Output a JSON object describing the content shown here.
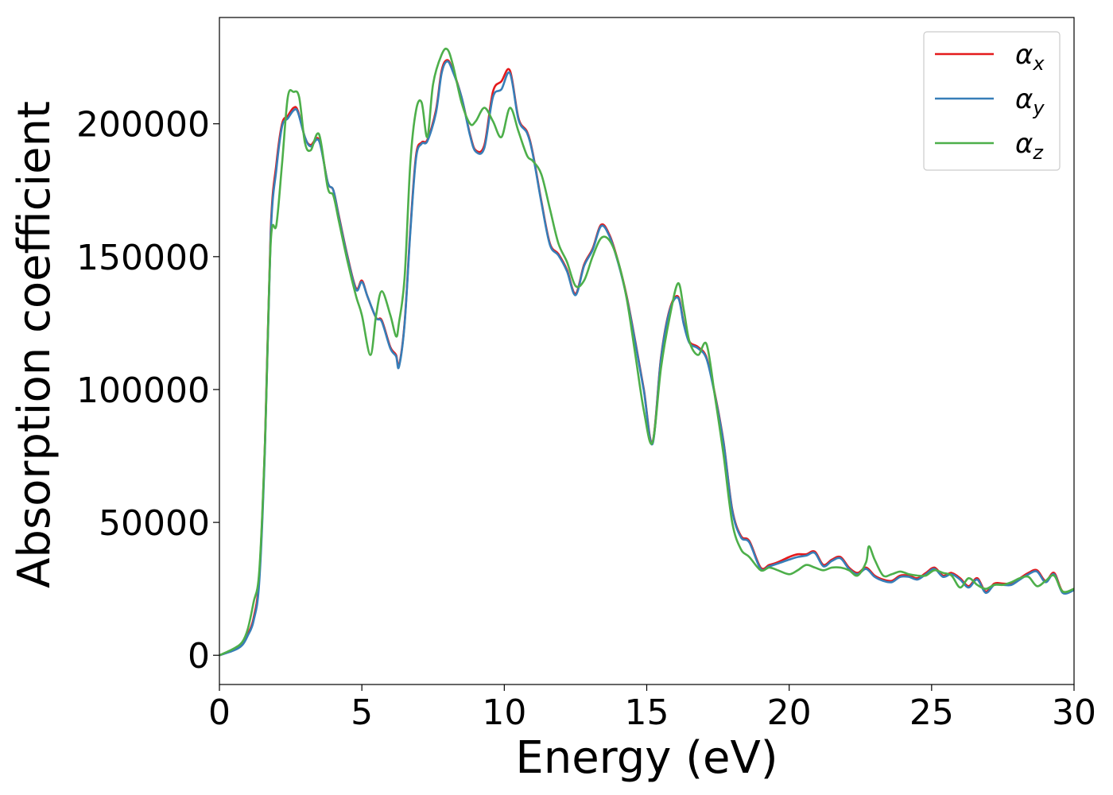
{
  "chart_data": {
    "type": "line",
    "xlabel": "Energy (eV)",
    "ylabel": "Absorption coefficient",
    "xlim": [
      0,
      30
    ],
    "ylim": [
      -11000,
      240000
    ],
    "xticks": [
      0,
      5,
      10,
      15,
      20,
      25,
      30
    ],
    "xtick_labels": [
      "0",
      "5",
      "10",
      "15",
      "20",
      "25",
      "30"
    ],
    "yticks": [
      0,
      50000,
      100000,
      150000,
      200000
    ],
    "ytick_labels": [
      "0",
      "50000",
      "100000",
      "150000",
      "200000"
    ],
    "grid": false,
    "legend_position": "top-right",
    "legend": [
      {
        "symbol": "α",
        "subscript": "x",
        "color": "#e41a1c"
      },
      {
        "symbol": "α",
        "subscript": "y",
        "color": "#377eb8"
      },
      {
        "symbol": "α",
        "subscript": "z",
        "color": "#4daf4a"
      }
    ],
    "series": [
      {
        "name": "αx",
        "color": "#e41a1c",
        "x": [
          0,
          0.5,
          0.8,
          1.0,
          1.2,
          1.4,
          1.6,
          1.8,
          2.0,
          2.2,
          2.4,
          2.6,
          2.75,
          3.0,
          3.2,
          3.5,
          3.8,
          4.0,
          4.2,
          4.5,
          4.8,
          5.0,
          5.2,
          5.5,
          5.7,
          6.0,
          6.2,
          6.3,
          6.5,
          6.7,
          6.9,
          7.1,
          7.3,
          7.6,
          7.8,
          8.0,
          8.2,
          8.5,
          8.8,
          9.0,
          9.3,
          9.6,
          9.9,
          10.2,
          10.5,
          10.8,
          11.0,
          11.3,
          11.6,
          11.9,
          12.2,
          12.5,
          12.8,
          13.1,
          13.4,
          13.7,
          14.0,
          14.3,
          14.6,
          14.9,
          15.2,
          15.5,
          15.8,
          16.1,
          16.3,
          16.5,
          16.8,
          17.1,
          17.4,
          17.7,
          18.0,
          18.3,
          18.6,
          19.0,
          19.3,
          19.6,
          20.0,
          20.3,
          20.6,
          20.9,
          21.2,
          21.5,
          21.8,
          22.1,
          22.4,
          22.7,
          23.0,
          23.3,
          23.6,
          23.9,
          24.2,
          24.5,
          24.8,
          25.1,
          25.4,
          25.7,
          26.0,
          26.3,
          26.6,
          26.9,
          27.2,
          27.5,
          27.8,
          28.1,
          28.4,
          28.7,
          29.0,
          29.3,
          29.6,
          30.0
        ],
        "y": [
          0,
          2000,
          4000,
          8000,
          14000,
          30000,
          80000,
          160000,
          185000,
          200000,
          203000,
          206000,
          205000,
          195000,
          192000,
          194000,
          178000,
          175000,
          165000,
          150000,
          138000,
          141000,
          135000,
          127000,
          126000,
          116000,
          113000,
          109000,
          125000,
          160000,
          188000,
          193000,
          194000,
          205000,
          220000,
          224000,
          220000,
          210000,
          196000,
          190000,
          192000,
          212000,
          216000,
          220000,
          202000,
          197000,
          189000,
          171000,
          155000,
          151000,
          145000,
          136000,
          147000,
          153000,
          162000,
          158000,
          148000,
          135000,
          118000,
          100000,
          80000,
          112000,
          130000,
          135000,
          125000,
          118000,
          116000,
          112000,
          98000,
          80000,
          55000,
          45000,
          43000,
          33000,
          34000,
          35000,
          37000,
          38000,
          38000,
          39000,
          34000,
          36000,
          37000,
          33000,
          31000,
          33000,
          30000,
          28500,
          28000,
          30000,
          30000,
          29000,
          31000,
          33000,
          30000,
          31000,
          29000,
          26000,
          29000,
          24000,
          27000,
          27000,
          27000,
          29000,
          31000,
          32000,
          28000,
          31000,
          24000,
          25000
        ]
      },
      {
        "name": "αy",
        "color": "#377eb8",
        "x": [
          0,
          0.5,
          0.8,
          1.0,
          1.2,
          1.4,
          1.6,
          1.8,
          2.0,
          2.2,
          2.4,
          2.6,
          2.75,
          3.0,
          3.2,
          3.5,
          3.8,
          4.0,
          4.2,
          4.5,
          4.8,
          5.0,
          5.2,
          5.5,
          5.7,
          6.0,
          6.2,
          6.3,
          6.5,
          6.7,
          6.9,
          7.1,
          7.3,
          7.6,
          7.8,
          8.0,
          8.2,
          8.5,
          8.8,
          9.0,
          9.3,
          9.6,
          9.9,
          10.2,
          10.5,
          10.8,
          11.0,
          11.3,
          11.6,
          11.9,
          12.2,
          12.5,
          12.8,
          13.1,
          13.4,
          13.7,
          14.0,
          14.3,
          14.6,
          14.9,
          15.2,
          15.5,
          15.8,
          16.1,
          16.3,
          16.5,
          16.8,
          17.1,
          17.4,
          17.7,
          18.0,
          18.3,
          18.6,
          19.0,
          19.3,
          19.6,
          20.0,
          20.3,
          20.6,
          20.9,
          21.2,
          21.5,
          21.8,
          22.1,
          22.4,
          22.7,
          23.0,
          23.3,
          23.6,
          23.9,
          24.2,
          24.5,
          24.8,
          25.1,
          25.4,
          25.7,
          26.0,
          26.3,
          26.6,
          26.9,
          27.2,
          27.5,
          27.8,
          28.1,
          28.4,
          28.7,
          29.0,
          29.3,
          29.6,
          30.0
        ],
        "y": [
          0,
          1800,
          3800,
          7500,
          13000,
          28000,
          78000,
          158000,
          183000,
          199000,
          202000,
          205000,
          204500,
          195000,
          191500,
          193500,
          178000,
          175000,
          164500,
          149500,
          137500,
          140500,
          135000,
          127000,
          125500,
          115500,
          112500,
          108500,
          124500,
          159000,
          187000,
          192500,
          193500,
          204000,
          219000,
          223500,
          219500,
          210000,
          195500,
          189500,
          191000,
          210000,
          213000,
          219000,
          201500,
          196500,
          188500,
          170500,
          154500,
          150500,
          144500,
          135500,
          146500,
          152500,
          161500,
          157500,
          147500,
          134500,
          117500,
          99500,
          79500,
          111500,
          129500,
          134500,
          124500,
          117500,
          115500,
          111500,
          97500,
          79500,
          54500,
          44500,
          42500,
          32500,
          33500,
          34500,
          36000,
          37000,
          37500,
          38500,
          33500,
          35500,
          36500,
          32500,
          30500,
          32500,
          29500,
          28000,
          27500,
          29500,
          29500,
          28500,
          30500,
          32500,
          29500,
          30500,
          28500,
          25500,
          28500,
          23500,
          26500,
          26500,
          26500,
          28500,
          30500,
          31500,
          27500,
          30500,
          23500,
          24500
        ]
      },
      {
        "name": "αz",
        "color": "#4daf4a",
        "x": [
          0,
          0.5,
          0.8,
          1.0,
          1.2,
          1.4,
          1.6,
          1.8,
          2.0,
          2.2,
          2.4,
          2.6,
          2.8,
          3.0,
          3.2,
          3.5,
          3.8,
          4.0,
          4.2,
          4.5,
          4.8,
          5.0,
          5.3,
          5.5,
          5.7,
          6.0,
          6.2,
          6.3,
          6.5,
          6.7,
          6.9,
          7.1,
          7.3,
          7.5,
          7.8,
          8.0,
          8.2,
          8.5,
          8.8,
          9.0,
          9.3,
          9.6,
          9.9,
          10.2,
          10.5,
          10.8,
          11.0,
          11.3,
          11.6,
          11.9,
          12.2,
          12.5,
          12.8,
          13.1,
          13.4,
          13.7,
          14.0,
          14.3,
          14.6,
          14.9,
          15.2,
          15.5,
          15.8,
          16.1,
          16.3,
          16.5,
          16.8,
          17.1,
          17.4,
          17.7,
          18.0,
          18.3,
          18.6,
          19.0,
          19.3,
          19.6,
          20.0,
          20.3,
          20.6,
          20.9,
          21.2,
          21.5,
          21.8,
          22.1,
          22.4,
          22.7,
          22.8,
          23.0,
          23.3,
          23.6,
          23.9,
          24.2,
          24.5,
          24.8,
          25.1,
          25.4,
          25.7,
          26.0,
          26.3,
          26.6,
          26.9,
          27.2,
          27.5,
          27.8,
          28.1,
          28.4,
          28.7,
          29.0,
          29.3,
          29.6,
          30.0
        ],
        "y": [
          0,
          2500,
          5000,
          10000,
          20000,
          32000,
          80000,
          155000,
          162000,
          185000,
          210000,
          212000,
          210000,
          193000,
          190000,
          196000,
          176000,
          173000,
          163000,
          148000,
          135000,
          128000,
          113000,
          128000,
          137000,
          128000,
          120000,
          125000,
          142000,
          185000,
          205000,
          208000,
          195000,
          215000,
          226000,
          228000,
          222000,
          208000,
          200000,
          201000,
          206000,
          201000,
          195000,
          206000,
          197000,
          188000,
          186000,
          181000,
          168000,
          155000,
          148000,
          139000,
          141000,
          150000,
          157000,
          156000,
          148000,
          134000,
          113000,
          92000,
          80000,
          108000,
          127000,
          140000,
          130000,
          118000,
          113000,
          117000,
          97000,
          75000,
          50000,
          40000,
          37000,
          32000,
          33000,
          32000,
          30500,
          32000,
          34000,
          33000,
          32000,
          33000,
          33000,
          32000,
          30000,
          35000,
          41000,
          36000,
          30000,
          30500,
          31500,
          30500,
          30000,
          30000,
          32000,
          31000,
          30000,
          25500,
          29000,
          26500,
          25000,
          26500,
          26500,
          27500,
          29000,
          29500,
          26000,
          28000,
          30000,
          24000,
          25000
        ]
      }
    ]
  }
}
